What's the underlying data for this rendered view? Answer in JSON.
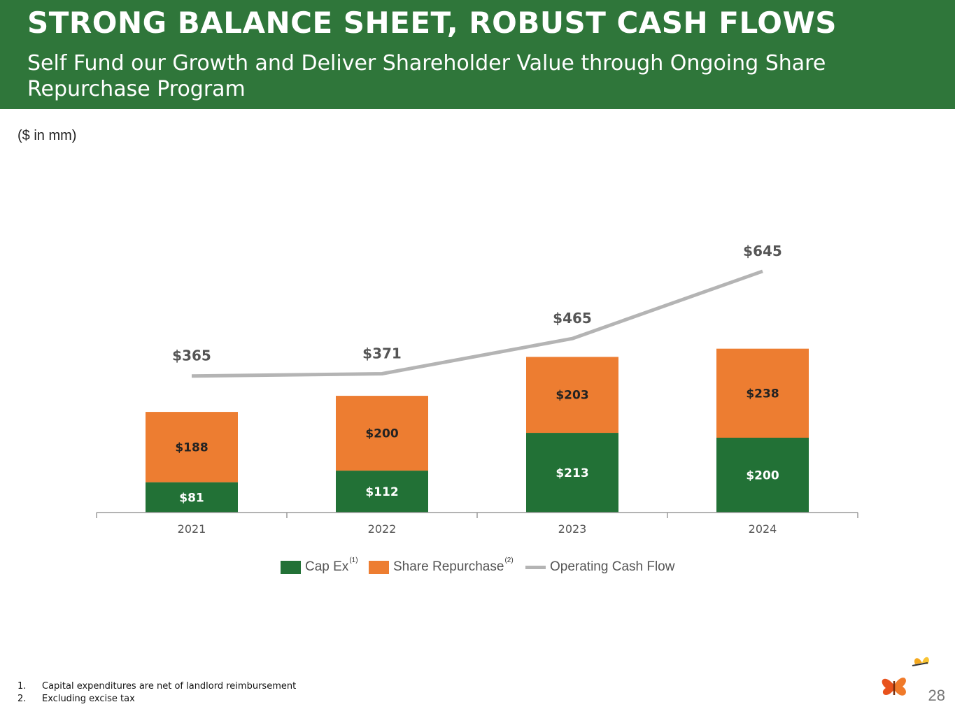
{
  "header": {
    "title": "STRONG BALANCE SHEET, ROBUST CASH FLOWS",
    "subtitle": "Self Fund our Growth and Deliver Shareholder Value through Ongoing Share Repurchase Program"
  },
  "units_label": "($ in mm)",
  "colors": {
    "banner": "#2f763a",
    "capex": "#227136",
    "repurchase": "#ed7d31",
    "cash_flow": "#b4b4b4"
  },
  "chart_data": {
    "type": "bar",
    "stacked": true,
    "categories": [
      "2021",
      "2022",
      "2023",
      "2024"
    ],
    "series": [
      {
        "name": "Cap Ex",
        "values": [
          81,
          112,
          213,
          200
        ],
        "labels": [
          "$81",
          "$112",
          "$213",
          "$200"
        ],
        "footnote": "(1)"
      },
      {
        "name": "Share Repurchase",
        "values": [
          188,
          200,
          203,
          238
        ],
        "labels": [
          "$188",
          "$200",
          "$203",
          "$238"
        ],
        "footnote": "(2)"
      }
    ],
    "line_series": {
      "name": "Operating Cash Flow",
      "values": [
        365,
        371,
        465,
        645
      ],
      "labels": [
        "$365",
        "$371",
        "$465",
        "$645"
      ]
    },
    "ylim": [
      0,
      700
    ],
    "legend_position": "bottom"
  },
  "legend": [
    {
      "label": "Cap Ex",
      "sup": "(1)"
    },
    {
      "label": "Share Repurchase",
      "sup": "(2)"
    },
    {
      "label": "Operating Cash Flow",
      "sup": ""
    }
  ],
  "footnotes": [
    {
      "num": "1.",
      "text": "Capital expenditures are net of landlord reimbursement"
    },
    {
      "num": "2.",
      "text": "Excluding excise tax"
    }
  ],
  "page_number": "28"
}
